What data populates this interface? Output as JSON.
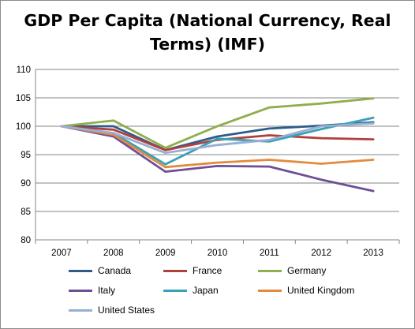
{
  "chart_data": {
    "type": "line",
    "title": "GDP Per Capita (National Currency, Real Terms) (IMF)",
    "xlabel": "",
    "ylabel": "",
    "x": [
      "2007",
      "2008",
      "2009",
      "2010",
      "2011",
      "2012",
      "2013"
    ],
    "ylim": [
      80,
      110
    ],
    "yticks": [
      80,
      85,
      90,
      95,
      100,
      105,
      110
    ],
    "grid": true,
    "legend_position": "bottom",
    "series": [
      {
        "name": "Canada",
        "color": "#2e5c8a",
        "values": [
          100,
          100.0,
          95.8,
          98.2,
          99.6,
          100.1,
          100.7
        ]
      },
      {
        "name": "France",
        "color": "#b0403e",
        "values": [
          100,
          99.4,
          95.8,
          97.6,
          98.4,
          97.9,
          97.7
        ]
      },
      {
        "name": "Germany",
        "color": "#8fae4c",
        "values": [
          100,
          101.0,
          96.2,
          100.0,
          103.3,
          104.0,
          104.9
        ]
      },
      {
        "name": "Italy",
        "color": "#6e4f94",
        "values": [
          100,
          98.2,
          92.0,
          93.0,
          92.9,
          90.6,
          88.6
        ]
      },
      {
        "name": "Japan",
        "color": "#39a1b6",
        "values": [
          100,
          98.8,
          93.3,
          97.8,
          97.3,
          99.5,
          101.5
        ]
      },
      {
        "name": "United Kingdom",
        "color": "#e38b3d",
        "values": [
          100,
          98.5,
          92.8,
          93.6,
          94.1,
          93.4,
          94.1
        ]
      },
      {
        "name": "United States",
        "color": "#98aed4",
        "values": [
          100,
          98.8,
          95.3,
          96.7,
          97.6,
          100.0,
          100.5
        ]
      }
    ]
  }
}
